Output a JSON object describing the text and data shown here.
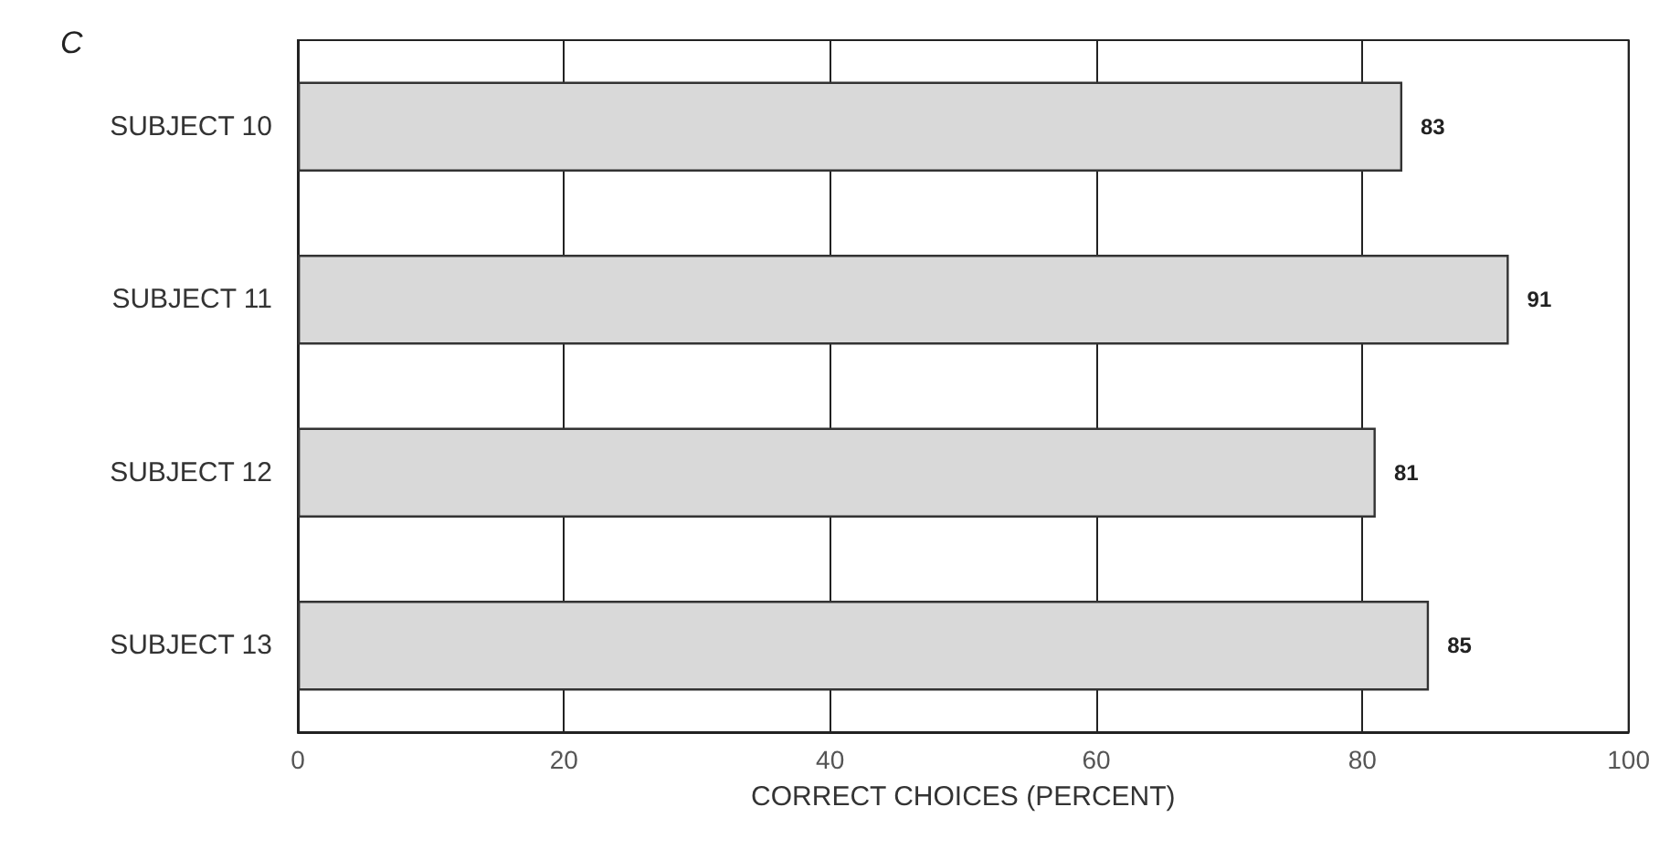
{
  "chart_data": {
    "type": "bar",
    "orientation": "horizontal",
    "title": "C",
    "xlabel": "CORRECT CHOICES (PERCENT)",
    "categories": [
      "SUBJECT 10",
      "SUBJECT 11",
      "SUBJECT 12",
      "SUBJECT 13"
    ],
    "values": [
      83,
      91,
      81,
      85
    ],
    "color": "#d9d9d9",
    "xlim": [
      0,
      100
    ],
    "xticks": [
      0,
      20,
      40,
      60,
      80,
      100
    ],
    "grid": "x",
    "data_labels": true
  }
}
